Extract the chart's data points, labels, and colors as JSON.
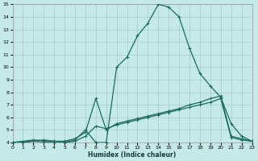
{
  "xlabel": "Humidex (Indice chaleur)",
  "bg_color": "#c5e8e8",
  "grid_color": "#a8cccc",
  "line_color": "#1a6b5a",
  "xlim": [
    0,
    23
  ],
  "ylim": [
    4,
    15
  ],
  "xticks": [
    0,
    1,
    2,
    3,
    4,
    5,
    6,
    7,
    8,
    9,
    10,
    11,
    12,
    13,
    14,
    15,
    16,
    17,
    18,
    19,
    20,
    21,
    22,
    23
  ],
  "yticks": [
    4,
    5,
    6,
    7,
    8,
    9,
    10,
    11,
    12,
    13,
    14,
    15
  ],
  "curve1_x": [
    0,
    1,
    2,
    3,
    4,
    5,
    6,
    7,
    8,
    9,
    10,
    11,
    12,
    13,
    14,
    15,
    16,
    17,
    18,
    19,
    20,
    21,
    22,
    23
  ],
  "curve1_y": [
    4.0,
    4.0,
    4.1,
    4.2,
    4.1,
    4.0,
    4.2,
    5.0,
    4.0,
    4.0,
    10.0,
    10.8,
    12.5,
    13.5,
    15.0,
    14.8,
    14.0,
    11.5,
    9.5,
    8.5,
    7.6,
    5.5,
    4.5,
    4.1
  ],
  "curve2_x": [
    0,
    2,
    3,
    4,
    5,
    6,
    7,
    8,
    9,
    10,
    11,
    12,
    13,
    14,
    15,
    16,
    17,
    18,
    19,
    20,
    21,
    22,
    23
  ],
  "curve2_y": [
    4.0,
    4.2,
    4.15,
    4.1,
    4.1,
    4.3,
    4.8,
    7.5,
    5.0,
    5.5,
    5.7,
    5.9,
    6.1,
    6.3,
    6.5,
    6.7,
    7.0,
    7.2,
    7.5,
    7.7,
    4.5,
    4.3,
    4.1
  ],
  "curve3_x": [
    0,
    2,
    3,
    4,
    5,
    6,
    7,
    8,
    9,
    10,
    11,
    12,
    13,
    14,
    15,
    16,
    17,
    18,
    19,
    20,
    21,
    22,
    23
  ],
  "curve3_y": [
    4.0,
    4.1,
    4.05,
    4.0,
    4.0,
    4.1,
    4.5,
    5.3,
    5.1,
    5.4,
    5.6,
    5.8,
    6.0,
    6.2,
    6.4,
    6.6,
    6.8,
    7.0,
    7.2,
    7.5,
    4.4,
    4.2,
    4.1
  ]
}
